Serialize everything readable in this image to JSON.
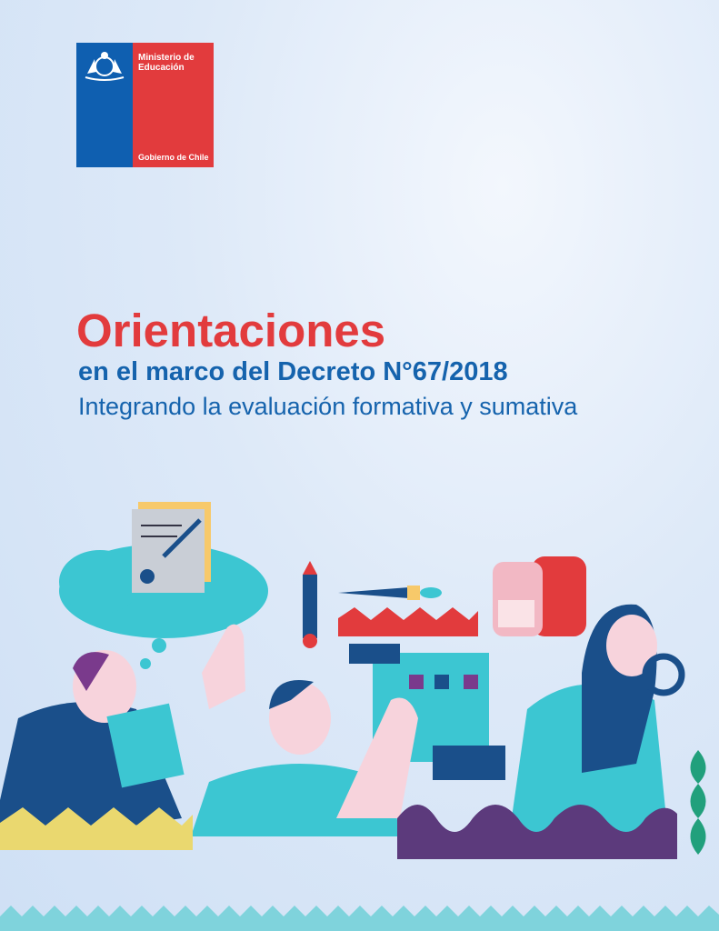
{
  "logo": {
    "line1": "Ministerio de",
    "line2": "Educación",
    "footer": "Gobierno de Chile",
    "colors": {
      "blue": "#0f5fb0",
      "red": "#e23b3d"
    }
  },
  "cover": {
    "title": "Orientaciones",
    "subtitle": "en el marco del Decreto N°67/2018",
    "tagline": "Integrando la evaluación formativa y sumativa"
  },
  "colors": {
    "title": "#e23b3d",
    "subtitle": "#1563ad",
    "accent_teal": "#3cc6d2"
  }
}
